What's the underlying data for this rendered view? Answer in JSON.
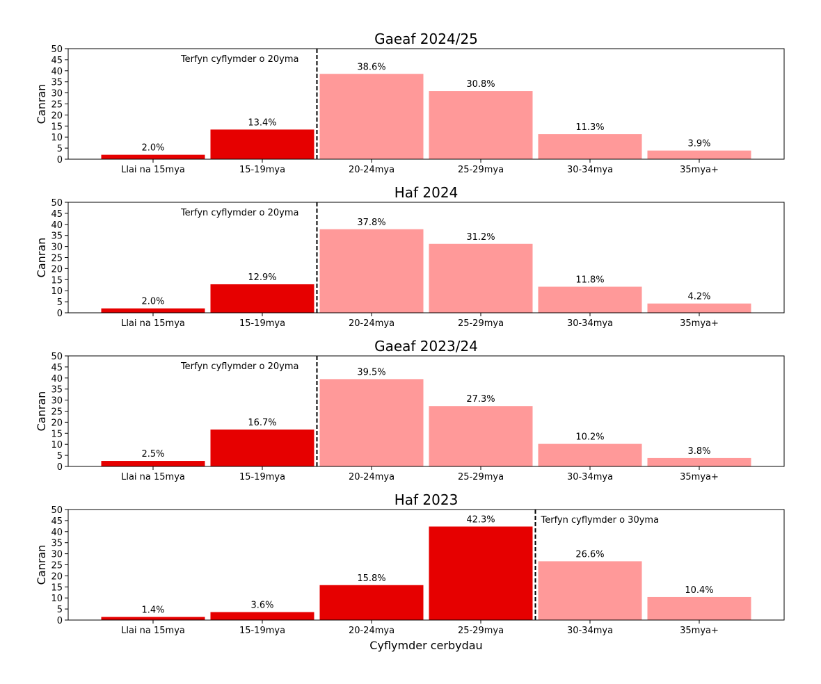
{
  "chart_data": [
    {
      "type": "bar",
      "title": "Gaeaf 2024/25",
      "ylabel": "Canran",
      "xlabel": "",
      "ylim": [
        0,
        50
      ],
      "yticks": [
        0,
        5,
        10,
        15,
        20,
        25,
        30,
        35,
        40,
        45,
        50
      ],
      "categories": [
        "Llai na 15mya",
        "15-19mya",
        "20-24mya",
        "25-29mya",
        "30-34mya",
        "35mya+"
      ],
      "values": [
        2.0,
        13.4,
        38.6,
        30.8,
        11.3,
        3.9
      ],
      "value_labels": [
        "2.0%",
        "13.4%",
        "38.6%",
        "30.8%",
        "11.3%",
        "3.9%"
      ],
      "limit_after_index": 1,
      "limit_label": "Terfyn cyflymder o 20yma",
      "limit_label_side": "left",
      "colors": {
        "below": "#e60000",
        "above": "#ff9999"
      }
    },
    {
      "type": "bar",
      "title": "Haf 2024",
      "ylabel": "Canran",
      "xlabel": "",
      "ylim": [
        0,
        50
      ],
      "yticks": [
        0,
        5,
        10,
        15,
        20,
        25,
        30,
        35,
        40,
        45,
        50
      ],
      "categories": [
        "Llai na 15mya",
        "15-19mya",
        "20-24mya",
        "25-29mya",
        "30-34mya",
        "35mya+"
      ],
      "values": [
        2.0,
        12.9,
        37.8,
        31.2,
        11.8,
        4.2
      ],
      "value_labels": [
        "2.0%",
        "12.9%",
        "37.8%",
        "31.2%",
        "11.8%",
        "4.2%"
      ],
      "limit_after_index": 1,
      "limit_label": "Terfyn cyflymder o 20yma",
      "limit_label_side": "left",
      "colors": {
        "below": "#e60000",
        "above": "#ff9999"
      }
    },
    {
      "type": "bar",
      "title": "Gaeaf 2023/24",
      "ylabel": "Canran",
      "xlabel": "",
      "ylim": [
        0,
        50
      ],
      "yticks": [
        0,
        5,
        10,
        15,
        20,
        25,
        30,
        35,
        40,
        45,
        50
      ],
      "categories": [
        "Llai na 15mya",
        "15-19mya",
        "20-24mya",
        "25-29mya",
        "30-34mya",
        "35mya+"
      ],
      "values": [
        2.5,
        16.7,
        39.5,
        27.3,
        10.2,
        3.8
      ],
      "value_labels": [
        "2.5%",
        "16.7%",
        "39.5%",
        "27.3%",
        "10.2%",
        "3.8%"
      ],
      "limit_after_index": 1,
      "limit_label": "Terfyn cyflymder o 20yma",
      "limit_label_side": "left",
      "colors": {
        "below": "#e60000",
        "above": "#ff9999"
      }
    },
    {
      "type": "bar",
      "title": "Haf 2023",
      "ylabel": "Canran",
      "xlabel": "Cyflymder cerbydau",
      "ylim": [
        0,
        50
      ],
      "yticks": [
        0,
        5,
        10,
        15,
        20,
        25,
        30,
        35,
        40,
        45,
        50
      ],
      "categories": [
        "Llai na 15mya",
        "15-19mya",
        "20-24mya",
        "25-29mya",
        "30-34mya",
        "35mya+"
      ],
      "values": [
        1.4,
        3.6,
        15.8,
        42.3,
        26.6,
        10.4
      ],
      "value_labels": [
        "1.4%",
        "3.6%",
        "15.8%",
        "42.3%",
        "26.6%",
        "10.4%"
      ],
      "limit_after_index": 3,
      "limit_label": "Terfyn cyflymder o 30yma",
      "limit_label_side": "right",
      "colors": {
        "below": "#e60000",
        "above": "#ff9999"
      }
    }
  ]
}
